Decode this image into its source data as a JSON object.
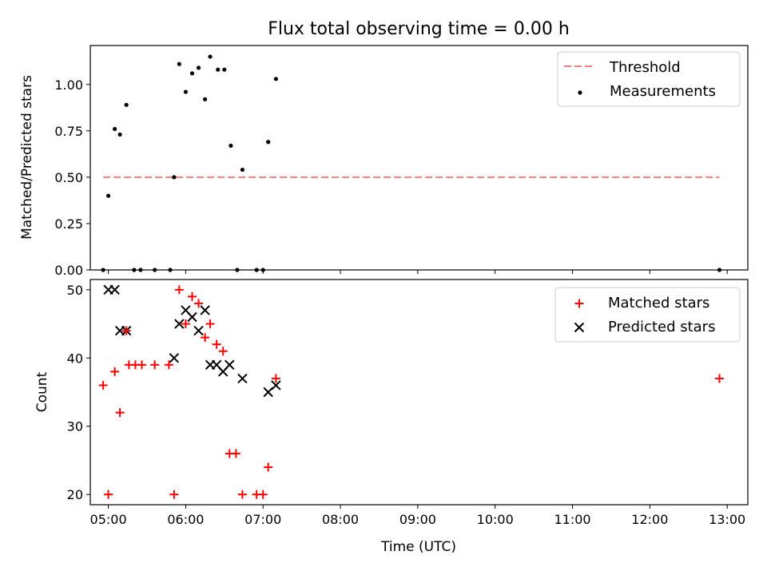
{
  "chart_data": [
    {
      "type": "scatter",
      "title": "Flux total observing time = 0.00 h",
      "xlabel": "",
      "ylabel": "Matched/Predicted stars",
      "ylim": [
        0,
        1.21
      ],
      "xlim": [
        "04:46",
        "13:16"
      ],
      "yticks": [
        0.0,
        0.25,
        0.5,
        0.75,
        1.0
      ],
      "ytick_labels": [
        "0.00",
        "0.25",
        "0.50",
        "0.75",
        "1.00"
      ],
      "legend_position": "top-right",
      "threshold": {
        "name": "Threshold",
        "value": 0.5,
        "x_start": "04:56",
        "x_end": "12:54",
        "color": "#f08080"
      },
      "series": [
        {
          "name": "Measurements",
          "color": "#000000",
          "marker": "dot",
          "points": [
            [
              "04:56",
              0.0
            ],
            [
              "05:00",
              0.4
            ],
            [
              "05:05",
              0.76
            ],
            [
              "05:09",
              0.73
            ],
            [
              "05:14",
              0.89
            ],
            [
              "05:20",
              0.0
            ],
            [
              "05:25",
              0.0
            ],
            [
              "05:36",
              0.0
            ],
            [
              "05:48",
              0.0
            ],
            [
              "05:51",
              0.5
            ],
            [
              "05:55",
              1.11
            ],
            [
              "06:00",
              0.96
            ],
            [
              "06:05",
              1.06
            ],
            [
              "06:10",
              1.09
            ],
            [
              "06:15",
              0.92
            ],
            [
              "06:19",
              1.15
            ],
            [
              "06:25",
              1.08
            ],
            [
              "06:30",
              1.08
            ],
            [
              "06:35",
              0.67
            ],
            [
              "06:40",
              0.0
            ],
            [
              "06:44",
              0.54
            ],
            [
              "06:55",
              0.0
            ],
            [
              "07:00",
              0.0
            ],
            [
              "07:04",
              0.69
            ],
            [
              "07:10",
              1.03
            ],
            [
              "12:54",
              0.0
            ]
          ]
        }
      ]
    },
    {
      "type": "scatter",
      "title": "",
      "xlabel": "Time (UTC)",
      "ylabel": "Count",
      "ylim": [
        18.5,
        51.5
      ],
      "xlim": [
        "04:46",
        "13:16"
      ],
      "yticks": [
        20,
        30,
        40,
        50
      ],
      "xtick_labels": [
        "05:00",
        "06:00",
        "07:00",
        "08:00",
        "09:00",
        "10:00",
        "11:00",
        "12:00",
        "13:00"
      ],
      "legend_position": "top-right",
      "series": [
        {
          "name": "Matched stars",
          "color": "#ff0000",
          "marker": "plus",
          "points": [
            [
              "04:56",
              36
            ],
            [
              "05:00",
              20
            ],
            [
              "05:05",
              38
            ],
            [
              "05:09",
              32
            ],
            [
              "05:14",
              44
            ],
            [
              "05:16",
              39
            ],
            [
              "05:21",
              39
            ],
            [
              "05:26",
              39
            ],
            [
              "05:36",
              39
            ],
            [
              "05:47",
              39
            ],
            [
              "05:51",
              20
            ],
            [
              "05:55",
              50
            ],
            [
              "06:00",
              45
            ],
            [
              "06:05",
              49
            ],
            [
              "06:10",
              48
            ],
            [
              "06:15",
              43
            ],
            [
              "06:19",
              45
            ],
            [
              "06:24",
              42
            ],
            [
              "06:29",
              41
            ],
            [
              "06:34",
              26
            ],
            [
              "06:39",
              26
            ],
            [
              "06:44",
              20
            ],
            [
              "06:55",
              20
            ],
            [
              "07:00",
              20
            ],
            [
              "07:04",
              24
            ],
            [
              "07:10",
              37
            ],
            [
              "12:54",
              37
            ]
          ]
        },
        {
          "name": "Predicted stars",
          "color": "#000000",
          "marker": "x",
          "points": [
            [
              "05:00",
              50
            ],
            [
              "05:05",
              50
            ],
            [
              "05:09",
              44
            ],
            [
              "05:14",
              44
            ],
            [
              "05:51",
              40
            ],
            [
              "05:55",
              45
            ],
            [
              "06:00",
              47
            ],
            [
              "06:05",
              46
            ],
            [
              "06:10",
              44
            ],
            [
              "06:15",
              47
            ],
            [
              "06:19",
              39
            ],
            [
              "06:24",
              39
            ],
            [
              "06:29",
              38
            ],
            [
              "06:34",
              39
            ],
            [
              "06:44",
              37
            ],
            [
              "07:04",
              35
            ],
            [
              "07:10",
              36
            ]
          ]
        }
      ]
    }
  ]
}
